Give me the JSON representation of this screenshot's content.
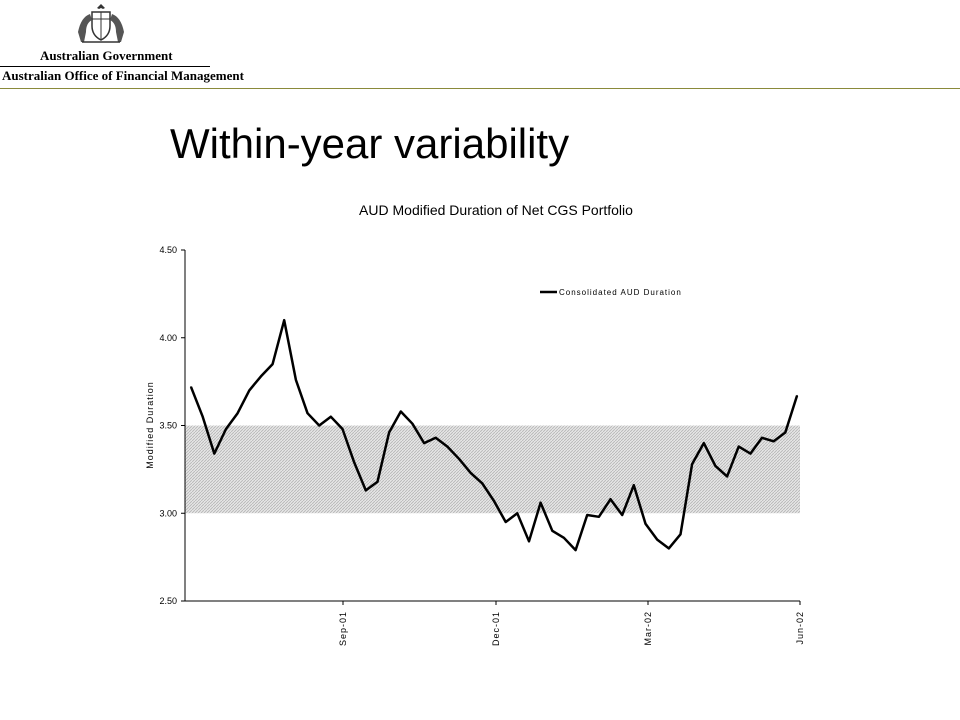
{
  "header": {
    "government": "Australian Government",
    "office": "Australian Office of Financial Management",
    "crest_icon": "coat-of-arms-icon"
  },
  "slide": {
    "title": "Within-year variability"
  },
  "chart_data": {
    "type": "line",
    "title": "AUD Modified Duration of Net CGS Portfolio",
    "xlabel": "",
    "ylabel": "Modified Duration",
    "ylim": [
      2.5,
      4.5
    ],
    "y_ticks": [
      "2.50",
      "3.00",
      "3.50",
      "4.00",
      "4.50"
    ],
    "x_ticks": [
      "Sep-01",
      "Dec-01",
      "Mar-02",
      "Jun-02"
    ],
    "band": {
      "from": 3.0,
      "to": 3.5,
      "color": "#d9d9d9"
    },
    "grid": false,
    "legend_position": "top-right",
    "series": [
      {
        "name": "Consolidated AUD Duration",
        "color": "#000000",
        "values": [
          3.72,
          3.55,
          3.34,
          3.48,
          3.57,
          3.7,
          3.78,
          3.85,
          4.1,
          3.76,
          3.57,
          3.5,
          3.55,
          3.48,
          3.29,
          3.13,
          3.18,
          3.46,
          3.58,
          3.51,
          3.4,
          3.43,
          3.38,
          3.31,
          3.23,
          3.17,
          3.07,
          2.95,
          3.0,
          2.84,
          3.06,
          2.9,
          2.86,
          2.79,
          2.99,
          2.98,
          3.08,
          2.99,
          3.16,
          2.94,
          2.85,
          2.8,
          2.88,
          3.28,
          3.4,
          3.27,
          3.21,
          3.38,
          3.34,
          3.43,
          3.41,
          3.46,
          3.67
        ]
      }
    ]
  }
}
